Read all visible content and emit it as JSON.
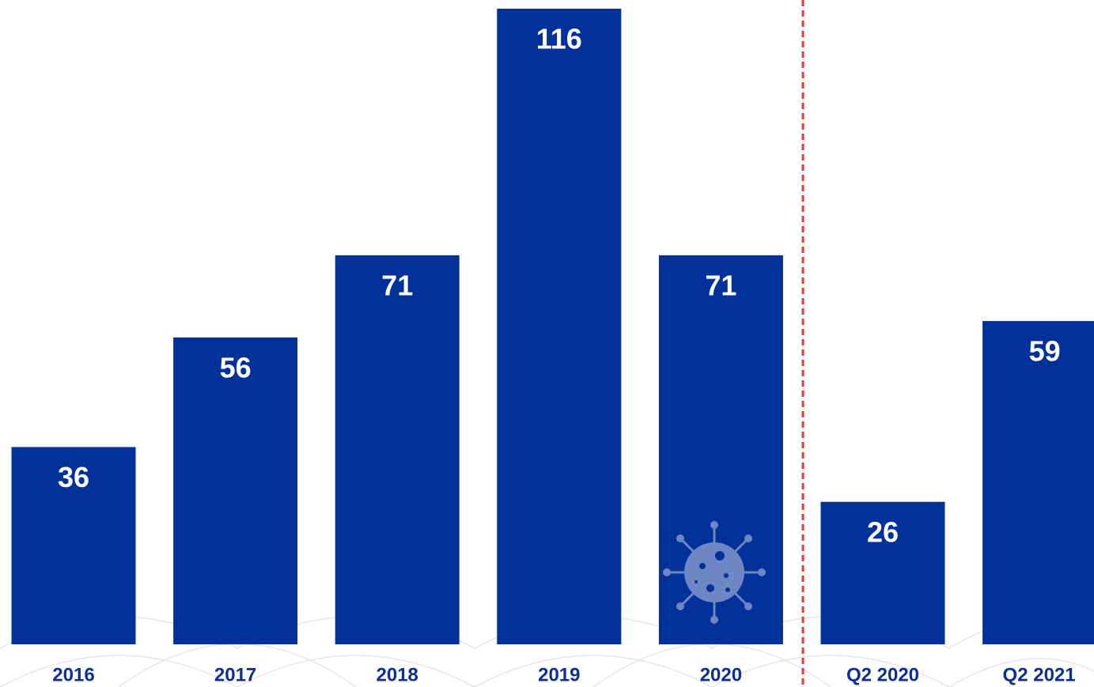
{
  "chart_data": {
    "type": "bar",
    "categories": [
      "2016",
      "2017",
      "2018",
      "2019",
      "2020",
      "Q2 2020",
      "Q2 2021"
    ],
    "values": [
      36,
      56,
      71,
      116,
      71,
      26,
      59
    ],
    "color": "#03319a"
  }
}
